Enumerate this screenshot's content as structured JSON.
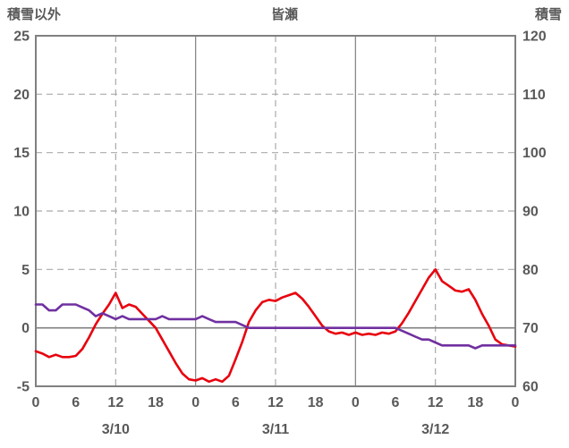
{
  "header": {
    "left_axis_title": "積雪以外",
    "station_name": "皆瀬",
    "right_axis_title": "積雪"
  },
  "chart_data": {
    "type": "line",
    "title": "皆瀬",
    "hours_span": 72,
    "x_tick_hours": [
      0,
      6,
      12,
      18,
      24,
      30,
      36,
      42,
      48,
      54,
      60,
      66,
      72
    ],
    "x_tick_labels": [
      "0",
      "6",
      "12",
      "18",
      "0",
      "6",
      "12",
      "18",
      "0",
      "6",
      "12",
      "18",
      "0"
    ],
    "date_labels": [
      "3/10",
      "3/11",
      "3/12"
    ],
    "left_axis": {
      "title": "積雪以外",
      "min": -5,
      "max": 25,
      "ticks": [
        25,
        20,
        15,
        10,
        5,
        0,
        -5
      ]
    },
    "right_axis": {
      "title": "積雪",
      "min": 60,
      "max": 120,
      "ticks": [
        120,
        110,
        100,
        90,
        80,
        70,
        60
      ]
    },
    "v_gridlines": {
      "dashed_hours": [
        12,
        36,
        60
      ],
      "solid_hours": [
        24,
        48
      ]
    },
    "grid": true,
    "legend": "none",
    "series": [
      {
        "name": "積雪以外",
        "axis": "left",
        "color": "#e8000d",
        "values": [
          -2.0,
          -2.2,
          -2.5,
          -2.3,
          -2.5,
          -2.5,
          -2.4,
          -1.8,
          -0.8,
          0.3,
          1.2,
          2.0,
          3.0,
          1.7,
          2.0,
          1.8,
          1.2,
          0.6,
          0.0,
          -1.0,
          -2.0,
          -3.0,
          -3.9,
          -4.4,
          -4.5,
          -4.3,
          -4.6,
          -4.4,
          -4.6,
          -4.1,
          -2.7,
          -1.2,
          0.5,
          1.5,
          2.2,
          2.4,
          2.3,
          2.6,
          2.8,
          3.0,
          2.5,
          1.8,
          1.0,
          0.2,
          -0.3,
          -0.5,
          -0.4,
          -0.6,
          -0.4,
          -0.6,
          -0.5,
          -0.6,
          -0.4,
          -0.5,
          -0.3,
          0.4,
          1.3,
          2.3,
          3.3,
          4.3,
          5.0,
          4.0,
          3.6,
          3.2,
          3.1,
          3.3,
          2.4,
          1.2,
          0.2,
          -1.0,
          -1.4,
          -1.5,
          -1.6
        ]
      },
      {
        "name": "積雪",
        "axis": "right",
        "color": "#7030a0",
        "values": [
          74,
          74,
          73,
          73,
          74,
          74,
          74,
          73.5,
          73,
          72,
          72.5,
          72,
          71.5,
          72,
          71.5,
          71.5,
          71.5,
          71.5,
          71.5,
          72,
          71.5,
          71.5,
          71.5,
          71.5,
          71.5,
          72,
          71.5,
          71,
          71,
          71,
          71,
          70.5,
          70,
          70,
          70,
          70,
          70,
          70,
          70,
          70,
          70,
          70,
          70,
          70,
          70,
          70,
          70,
          70,
          70,
          70,
          70,
          70,
          70,
          70,
          70,
          69.5,
          69,
          68.5,
          68,
          68,
          67.5,
          67,
          67,
          67,
          67,
          67,
          66.5,
          67,
          67,
          67,
          67,
          67,
          67
        ]
      }
    ],
    "style": {
      "axis_color": "#808080",
      "grid_color": "#a9a9a9",
      "text_color": "#595959",
      "background": "#ffffff"
    }
  }
}
